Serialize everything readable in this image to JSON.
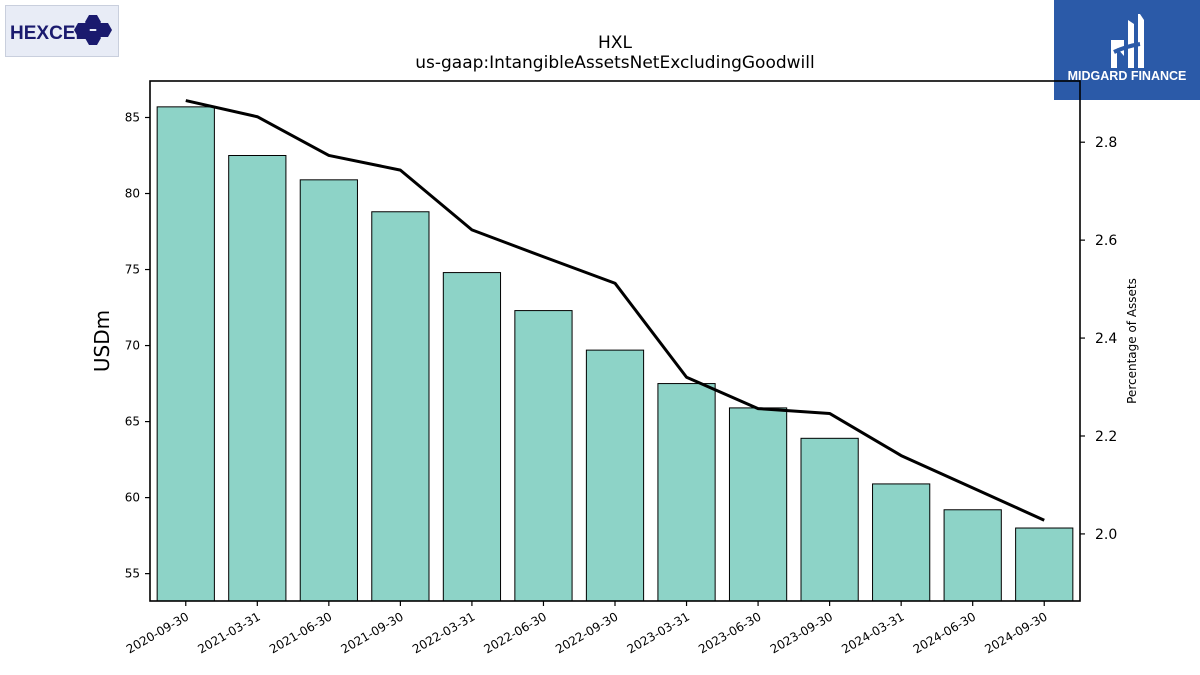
{
  "logos": {
    "left_text": "HEXCEL",
    "right_text": "MIDGARD FINANCE"
  },
  "colors": {
    "bar_fill": "#8dd3c7",
    "bar_stroke": "#000000",
    "line": "#000000",
    "brand_blue": "#2b5aa8",
    "hexcel_navy": "#1a1a6e"
  },
  "chart_data": {
    "type": "bar",
    "title": "HXL",
    "subtitle": "us-gaap:IntangibleAssetsNetExcludingGoodwill",
    "categories": [
      "2020-09-30",
      "2021-03-31",
      "2021-06-30",
      "2021-09-30",
      "2022-03-31",
      "2022-06-30",
      "2022-09-30",
      "2023-03-31",
      "2023-06-30",
      "2023-09-30",
      "2024-03-31",
      "2024-06-30",
      "2024-09-30"
    ],
    "series": [
      {
        "axis": "left",
        "kind": "bar",
        "values": [
          85.7,
          82.5,
          80.9,
          78.8,
          74.8,
          72.3,
          69.7,
          67.5,
          65.9,
          63.9,
          60.9,
          59.2,
          58.0
        ]
      },
      {
        "axis": "right",
        "kind": "line",
        "values": [
          2.885,
          2.852,
          2.773,
          2.743,
          2.621,
          2.566,
          2.512,
          2.32,
          2.256,
          2.246,
          2.16,
          2.094,
          2.028
        ]
      }
    ],
    "ylabel": "USDm",
    "y2label": "Percentage of Assets",
    "ylim": [
      53.2,
      87.4
    ],
    "y2lim": [
      1.863,
      2.925
    ],
    "yticks": [
      55,
      60,
      65,
      70,
      75,
      80,
      85
    ],
    "y2ticks": [
      2.0,
      2.2,
      2.4,
      2.6,
      2.8
    ],
    "y2tick_labels": [
      "2.0",
      "2.2",
      "2.4",
      "2.6",
      "2.8"
    ],
    "grid": false,
    "legend": "none"
  }
}
